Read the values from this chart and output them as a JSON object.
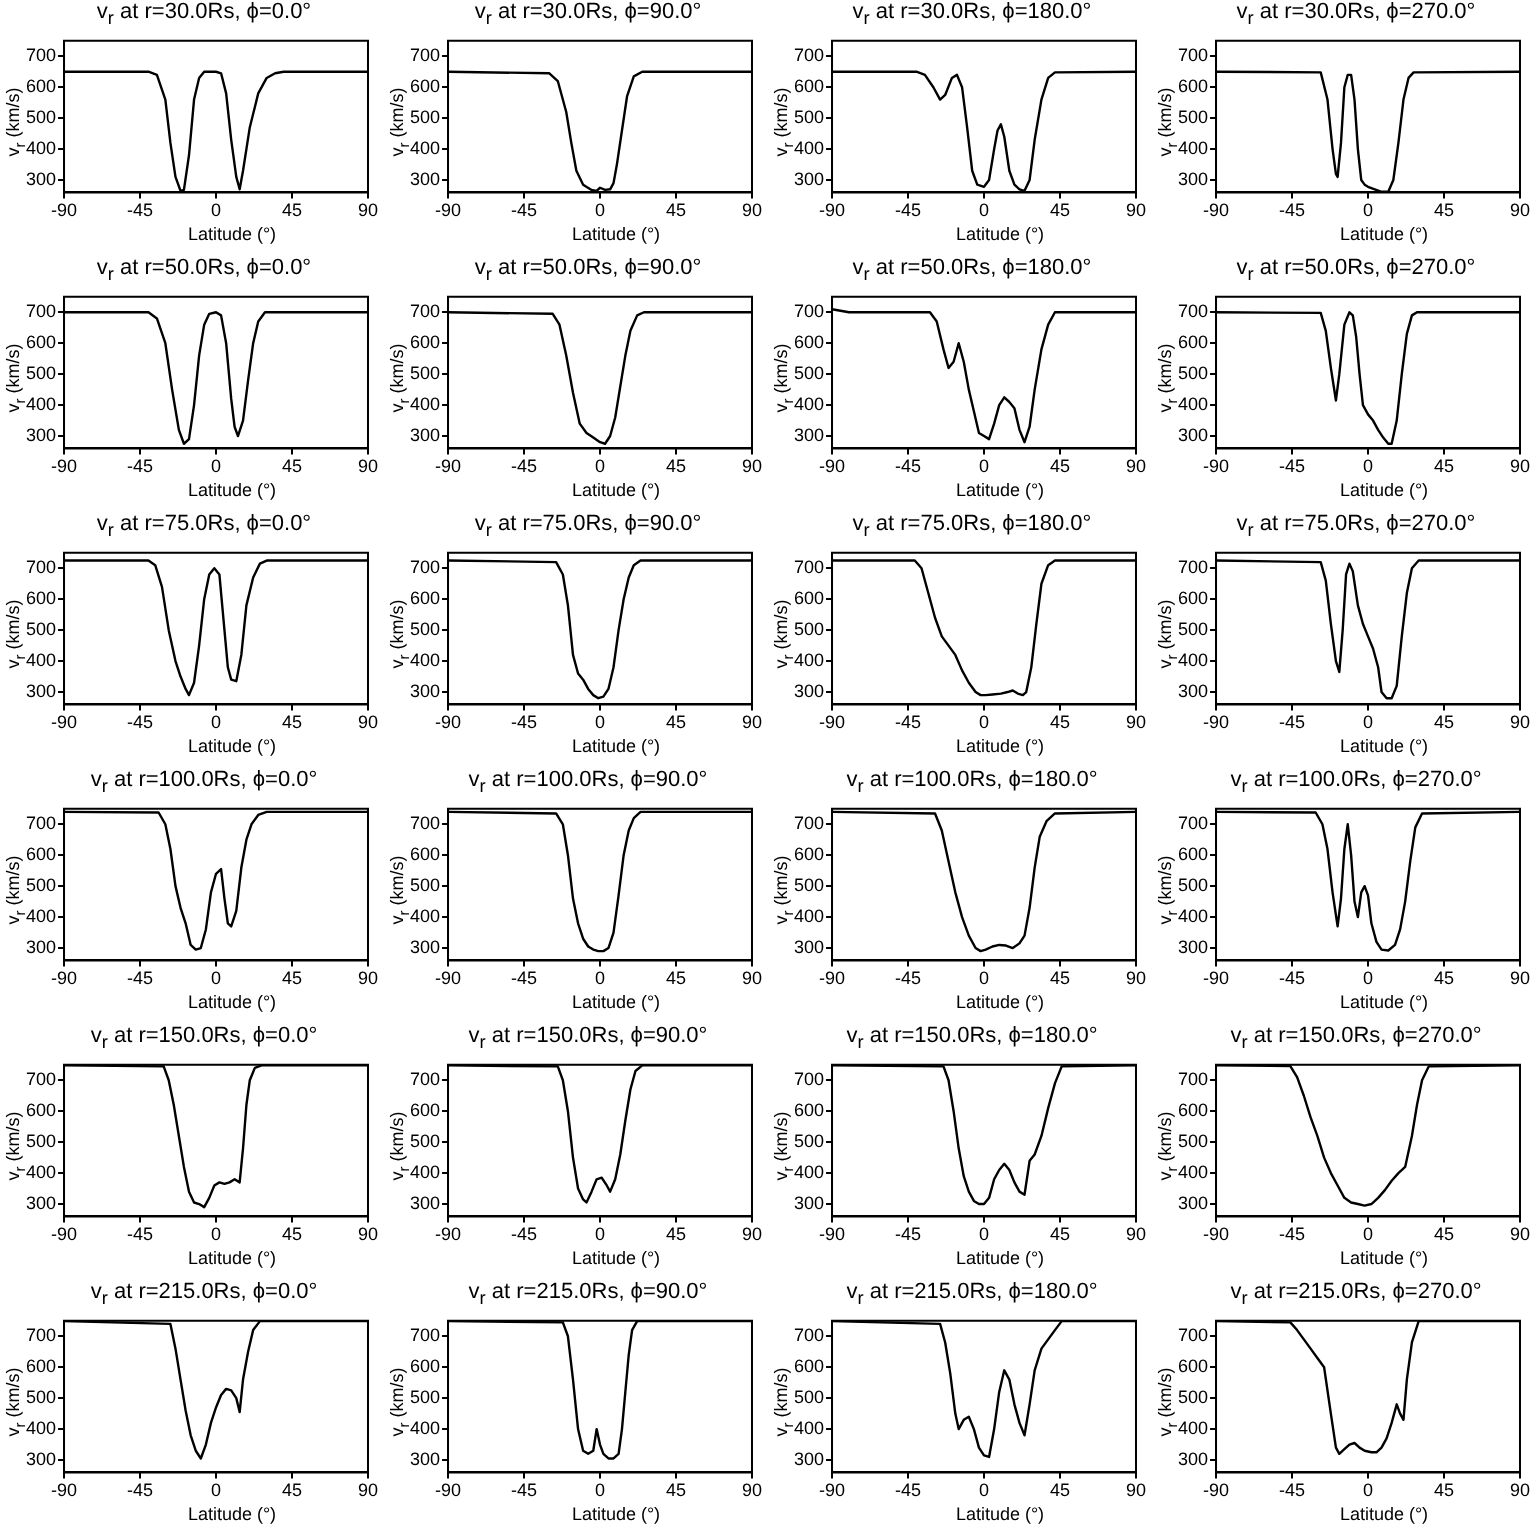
{
  "chart_data": [
    {
      "type": "line",
      "title": "v$_{r}$ at r=30.0Rs, ϕ=0.0°",
      "xlabel": "Latitude (°)",
      "ylabel": "v$_{r}$ (km/s)",
      "color": "#000000",
      "xlim": [
        -90,
        90
      ],
      "xticks": [
        -90,
        -45,
        0,
        45,
        90
      ],
      "ylim": [
        260,
        750
      ],
      "yticks": [
        300,
        400,
        500,
        600,
        700
      ],
      "x": [
        -90,
        -40,
        -35,
        -30,
        -27,
        -24,
        -21,
        -19,
        -16,
        -13,
        -10,
        -7,
        0,
        3,
        6,
        9,
        12,
        14,
        16,
        20,
        25,
        30,
        35,
        40,
        90
      ],
      "values": [
        650,
        650,
        640,
        560,
        420,
        310,
        265,
        268,
        380,
        560,
        630,
        650,
        650,
        645,
        580,
        430,
        310,
        270,
        330,
        470,
        580,
        630,
        645,
        650,
        650
      ]
    },
    {
      "type": "line",
      "title": "v$_{r}$ at r=30.0Rs, ϕ=90.0°",
      "xlabel": "Latitude (°)",
      "ylabel": "v$_{r}$ (km/s)",
      "color": "#000000",
      "xlim": [
        -90,
        90
      ],
      "xticks": [
        -90,
        -45,
        0,
        45,
        90
      ],
      "ylim": [
        260,
        750
      ],
      "yticks": [
        300,
        400,
        500,
        600,
        700
      ],
      "x": [
        -90,
        -30,
        -25,
        -20,
        -17,
        -14,
        -10,
        -5,
        -2,
        0,
        3,
        6,
        8,
        10,
        13,
        16,
        20,
        25,
        90
      ],
      "values": [
        650,
        645,
        620,
        520,
        420,
        330,
        285,
        268,
        265,
        275,
        268,
        270,
        290,
        350,
        460,
        570,
        635,
        650,
        650
      ]
    },
    {
      "type": "line",
      "title": "v$_{r}$ at r=30.0Rs, ϕ=180.0°",
      "xlabel": "Latitude (°)",
      "ylabel": "v$_{r}$ (km/s)",
      "color": "#000000",
      "xlim": [
        -90,
        90
      ],
      "xticks": [
        -90,
        -45,
        0,
        45,
        90
      ],
      "ylim": [
        260,
        750
      ],
      "yticks": [
        300,
        400,
        500,
        600,
        700
      ],
      "x": [
        -90,
        -40,
        -35,
        -30,
        -26,
        -23,
        -19,
        -16,
        -13,
        -10,
        -7,
        -4,
        0,
        3,
        6,
        8,
        10,
        12,
        15,
        18,
        21,
        24,
        27,
        30,
        34,
        38,
        42,
        90
      ],
      "values": [
        650,
        650,
        640,
        600,
        560,
        575,
        630,
        640,
        600,
        470,
        330,
        285,
        278,
        300,
        400,
        460,
        480,
        440,
        330,
        285,
        270,
        265,
        300,
        430,
        560,
        630,
        648,
        650
      ]
    },
    {
      "type": "line",
      "title": "v$_{r}$ at r=30.0Rs, ϕ=270.0°",
      "xlabel": "Latitude (°)",
      "ylabel": "v$_{r}$ (km/s)",
      "color": "#000000",
      "xlim": [
        -90,
        90
      ],
      "xticks": [
        -90,
        -45,
        0,
        45,
        90
      ],
      "ylim": [
        260,
        750
      ],
      "yticks": [
        300,
        400,
        500,
        600,
        700
      ],
      "x": [
        -90,
        -28,
        -24,
        -21,
        -19,
        -18,
        -16,
        -14,
        -12,
        -10,
        -8,
        -6,
        -4,
        -2,
        0,
        4,
        8,
        12,
        15,
        18,
        21,
        24,
        27,
        90
      ],
      "values": [
        650,
        648,
        560,
        400,
        320,
        310,
        420,
        600,
        640,
        640,
        560,
        400,
        300,
        285,
        278,
        270,
        262,
        262,
        300,
        420,
        560,
        630,
        648,
        650
      ]
    },
    {
      "type": "line",
      "title": "v$_{r}$ at r=50.0Rs, ϕ=0.0°",
      "xlabel": "Latitude (°)",
      "ylabel": "v$_{r}$ (km/s)",
      "color": "#000000",
      "xlim": [
        -90,
        90
      ],
      "xticks": [
        -90,
        -45,
        0,
        45,
        90
      ],
      "ylim": [
        260,
        750
      ],
      "yticks": [
        300,
        400,
        500,
        600,
        700
      ],
      "x": [
        -90,
        -40,
        -35,
        -30,
        -26,
        -22,
        -19,
        -16,
        -13,
        -10,
        -7,
        -4,
        0,
        3,
        6,
        9,
        11,
        13,
        16,
        19,
        22,
        25,
        29,
        90
      ],
      "values": [
        700,
        700,
        680,
        600,
        450,
        320,
        275,
        290,
        400,
        560,
        660,
        695,
        700,
        690,
        600,
        420,
        330,
        300,
        350,
        480,
        600,
        670,
        700,
        700
      ]
    },
    {
      "type": "line",
      "title": "v$_{r}$ at r=50.0Rs, ϕ=90.0°",
      "xlabel": "Latitude (°)",
      "ylabel": "v$_{r}$ (km/s)",
      "color": "#000000",
      "xlim": [
        -90,
        90
      ],
      "xticks": [
        -90,
        -45,
        0,
        45,
        90
      ],
      "ylim": [
        260,
        750
      ],
      "yticks": [
        300,
        400,
        500,
        600,
        700
      ],
      "x": [
        -90,
        -28,
        -24,
        -20,
        -16,
        -12,
        -8,
        -4,
        0,
        3,
        6,
        9,
        12,
        15,
        18,
        22,
        26,
        90
      ],
      "values": [
        700,
        695,
        660,
        560,
        440,
        340,
        310,
        295,
        280,
        275,
        300,
        360,
        460,
        560,
        640,
        690,
        700,
        700
      ]
    },
    {
      "type": "line",
      "title": "v$_{r}$ at r=50.0Rs, ϕ=180.0°",
      "xlabel": "Latitude (°)",
      "ylabel": "v$_{r}$ (km/s)",
      "color": "#000000",
      "xlim": [
        -90,
        90
      ],
      "xticks": [
        -90,
        -45,
        0,
        45,
        90
      ],
      "ylim": [
        260,
        750
      ],
      "yticks": [
        300,
        400,
        500,
        600,
        700
      ],
      "x": [
        -90,
        -85,
        -80,
        -32,
        -28,
        -24,
        -21,
        -18,
        -15,
        -12,
        -9,
        -6,
        -3,
        0,
        3,
        6,
        9,
        12,
        15,
        18,
        21,
        24,
        27,
        30,
        34,
        38,
        42,
        90
      ],
      "values": [
        710,
        705,
        700,
        700,
        670,
        580,
        520,
        540,
        600,
        540,
        450,
        380,
        310,
        300,
        290,
        340,
        400,
        425,
        410,
        390,
        320,
        280,
        330,
        450,
        580,
        660,
        700,
        700
      ]
    },
    {
      "type": "line",
      "title": "v$_{r}$ at r=50.0Rs, ϕ=270.0°",
      "xlabel": "Latitude (°)",
      "ylabel": "v$_{r}$ (km/s)",
      "color": "#000000",
      "xlim": [
        -90,
        90
      ],
      "xticks": [
        -90,
        -45,
        0,
        45,
        90
      ],
      "ylim": [
        260,
        750
      ],
      "yticks": [
        300,
        400,
        500,
        600,
        700
      ],
      "x": [
        -90,
        -28,
        -25,
        -22,
        -19,
        -17,
        -14,
        -11,
        -9,
        -7,
        -5,
        -3,
        0,
        3,
        6,
        9,
        12,
        14,
        17,
        20,
        23,
        26,
        29,
        90
      ],
      "values": [
        700,
        698,
        640,
        520,
        415,
        500,
        660,
        700,
        690,
        620,
        500,
        400,
        370,
        350,
        320,
        295,
        275,
        275,
        350,
        500,
        630,
        690,
        700,
        700
      ]
    },
    {
      "type": "line",
      "title": "v$_{r}$ at r=75.0Rs, ϕ=0.0°",
      "xlabel": "Latitude (°)",
      "ylabel": "v$_{r}$ (km/s)",
      "color": "#000000",
      "xlim": [
        -90,
        90
      ],
      "xticks": [
        -90,
        -45,
        0,
        45,
        90
      ],
      "ylim": [
        260,
        750
      ],
      "yticks": [
        300,
        400,
        500,
        600,
        700
      ],
      "x": [
        -90,
        -40,
        -36,
        -32,
        -28,
        -24,
        -21,
        -18,
        -16,
        -13,
        -10,
        -7,
        -4,
        -1,
        2,
        5,
        7,
        9,
        12,
        15,
        18,
        22,
        26,
        30,
        90
      ],
      "values": [
        725,
        725,
        710,
        640,
        500,
        400,
        350,
        310,
        290,
        330,
        450,
        600,
        680,
        700,
        680,
        500,
        380,
        340,
        335,
        420,
        580,
        670,
        715,
        725,
        725
      ]
    },
    {
      "type": "line",
      "title": "v$_{r}$ at r=75.0Rs, ϕ=90.0°",
      "xlabel": "Latitude (°)",
      "ylabel": "v$_{r}$ (km/s)",
      "color": "#000000",
      "xlim": [
        -90,
        90
      ],
      "xticks": [
        -90,
        -45,
        0,
        45,
        90
      ],
      "ylim": [
        260,
        750
      ],
      "yticks": [
        300,
        400,
        500,
        600,
        700
      ],
      "x": [
        -90,
        -26,
        -22,
        -19,
        -16,
        -13,
        -10,
        -7,
        -4,
        -1,
        2,
        5,
        8,
        11,
        14,
        17,
        20,
        24,
        90
      ],
      "values": [
        725,
        720,
        680,
        580,
        420,
        360,
        340,
        310,
        290,
        280,
        285,
        310,
        380,
        500,
        600,
        670,
        710,
        725,
        725
      ]
    },
    {
      "type": "line",
      "title": "v$_{r}$ at r=75.0Rs, ϕ=180.0°",
      "xlabel": "Latitude (°)",
      "ylabel": "v$_{r}$ (km/s)",
      "color": "#000000",
      "xlim": [
        -90,
        90
      ],
      "xticks": [
        -90,
        -45,
        0,
        45,
        90
      ],
      "ylim": [
        260,
        750
      ],
      "yticks": [
        300,
        400,
        500,
        600,
        700
      ],
      "x": [
        -90,
        -41,
        -37,
        -33,
        -29,
        -25,
        -21,
        -17,
        -13,
        -9,
        -5,
        -2,
        1,
        5,
        10,
        14,
        17,
        20,
        23,
        25,
        28,
        31,
        34,
        38,
        42,
        90
      ],
      "values": [
        725,
        725,
        700,
        620,
        540,
        480,
        450,
        420,
        370,
        330,
        300,
        290,
        290,
        292,
        295,
        300,
        305,
        295,
        290,
        300,
        380,
        520,
        650,
        710,
        725,
        725
      ]
    },
    {
      "type": "line",
      "title": "v$_{r}$ at r=75.0Rs, ϕ=270.0°",
      "xlabel": "Latitude (°)",
      "ylabel": "v$_{r}$ (km/s)",
      "color": "#000000",
      "xlim": [
        -90,
        90
      ],
      "xticks": [
        -90,
        -45,
        0,
        45,
        90
      ],
      "ylim": [
        260,
        750
      ],
      "yticks": [
        300,
        400,
        500,
        600,
        700
      ],
      "x": [
        -90,
        -28,
        -25,
        -22,
        -19,
        -17,
        -15,
        -13,
        -11,
        -9,
        -6,
        -3,
        0,
        3,
        6,
        8,
        11,
        14,
        17,
        20,
        23,
        26,
        30,
        90
      ],
      "values": [
        725,
        720,
        660,
        520,
        400,
        365,
        500,
        680,
        715,
        690,
        580,
        520,
        480,
        440,
        380,
        300,
        280,
        280,
        320,
        480,
        620,
        700,
        725,
        725
      ]
    },
    {
      "type": "line",
      "title": "v$_{r}$ at r=100.0Rs, ϕ=0.0°",
      "xlabel": "Latitude (°)",
      "ylabel": "v$_{r}$ (km/s)",
      "color": "#000000",
      "xlim": [
        -90,
        90
      ],
      "xticks": [
        -90,
        -45,
        0,
        45,
        90
      ],
      "ylim": [
        260,
        750
      ],
      "yticks": [
        300,
        400,
        500,
        600,
        700
      ],
      "x": [
        -90,
        -34,
        -30,
        -27,
        -24,
        -21,
        -18,
        -15,
        -12,
        -9,
        -6,
        -3,
        0,
        3,
        5,
        7,
        9,
        12,
        15,
        18,
        21,
        25,
        30,
        90
      ],
      "values": [
        740,
        738,
        700,
        620,
        500,
        430,
        380,
        310,
        295,
        300,
        360,
        480,
        540,
        555,
        460,
        380,
        370,
        420,
        560,
        650,
        700,
        730,
        740,
        740
      ]
    },
    {
      "type": "line",
      "title": "v$_{r}$ at r=100.0Rs, ϕ=90.0°",
      "xlabel": "Latitude (°)",
      "ylabel": "v$_{r}$ (km/s)",
      "color": "#000000",
      "xlim": [
        -90,
        90
      ],
      "xticks": [
        -90,
        -45,
        0,
        45,
        90
      ],
      "ylim": [
        260,
        750
      ],
      "yticks": [
        300,
        400,
        500,
        600,
        700
      ],
      "x": [
        -90,
        -26,
        -22,
        -19,
        -16,
        -13,
        -10,
        -7,
        -4,
        -1,
        2,
        5,
        8,
        11,
        14,
        17,
        20,
        24,
        90
      ],
      "values": [
        740,
        735,
        700,
        600,
        460,
        380,
        330,
        305,
        295,
        290,
        290,
        300,
        350,
        470,
        600,
        680,
        720,
        740,
        740
      ]
    },
    {
      "type": "line",
      "title": "v$_{r}$ at r=100.0Rs, ϕ=180.0°",
      "xlabel": "Latitude (°)",
      "ylabel": "v$_{r}$ (km/s)",
      "color": "#000000",
      "xlim": [
        -90,
        90
      ],
      "xticks": [
        -90,
        -45,
        0,
        45,
        90
      ],
      "ylim": [
        260,
        750
      ],
      "yticks": [
        300,
        400,
        500,
        600,
        700
      ],
      "x": [
        -90,
        -29,
        -25,
        -21,
        -17,
        -13,
        -9,
        -5,
        -2,
        1,
        5,
        9,
        13,
        17,
        21,
        24,
        27,
        30,
        33,
        37,
        42,
        90
      ],
      "values": [
        740,
        735,
        680,
        580,
        480,
        400,
        340,
        300,
        290,
        295,
        305,
        310,
        308,
        300,
        315,
        340,
        430,
        560,
        660,
        710,
        735,
        740
      ]
    },
    {
      "type": "line",
      "title": "v$_{r}$ at r=100.0Rs, ϕ=270.0°",
      "xlabel": "Latitude (°)",
      "ylabel": "v$_{r}$ (km/s)",
      "color": "#000000",
      "xlim": [
        -90,
        90
      ],
      "xticks": [
        -90,
        -45,
        0,
        45,
        90
      ],
      "ylim": [
        260,
        750
      ],
      "yticks": [
        300,
        400,
        500,
        600,
        700
      ],
      "x": [
        -90,
        -31,
        -27,
        -24,
        -21,
        -18,
        -16,
        -14,
        -12,
        -10,
        -8,
        -6,
        -4,
        -2,
        0,
        2,
        5,
        8,
        12,
        16,
        19,
        22,
        25,
        28,
        32,
        90
      ],
      "values": [
        740,
        738,
        700,
        620,
        480,
        370,
        460,
        620,
        700,
        600,
        450,
        400,
        480,
        500,
        470,
        380,
        320,
        295,
        292,
        310,
        360,
        450,
        580,
        690,
        735,
        740
      ]
    },
    {
      "type": "line",
      "title": "v$_{r}$ at r=150.0Rs, ϕ=0.0°",
      "xlabel": "Latitude (°)",
      "ylabel": "v$_{r}$ (km/s)",
      "color": "#000000",
      "xlim": [
        -90,
        90
      ],
      "xticks": [
        -90,
        -45,
        0,
        45,
        90
      ],
      "ylim": [
        260,
        750
      ],
      "yticks": [
        300,
        400,
        500,
        600,
        700
      ],
      "x": [
        -90,
        -31,
        -28,
        -25,
        -22,
        -19,
        -16,
        -13,
        -10,
        -7,
        -4,
        -1,
        2,
        5,
        8,
        11,
        14,
        16,
        18,
        20,
        23,
        27,
        90
      ],
      "values": [
        748,
        745,
        700,
        620,
        520,
        420,
        340,
        305,
        300,
        290,
        320,
        360,
        370,
        365,
        370,
        380,
        370,
        480,
        620,
        700,
        740,
        748,
        748
      ]
    },
    {
      "type": "line",
      "title": "v$_{r}$ at r=150.0Rs, ϕ=90.0°",
      "xlabel": "Latitude (°)",
      "ylabel": "v$_{r}$ (km/s)",
      "color": "#000000",
      "xlim": [
        -90,
        90
      ],
      "xticks": [
        -90,
        -45,
        0,
        45,
        90
      ],
      "ylim": [
        260,
        750
      ],
      "yticks": [
        300,
        400,
        500,
        600,
        700
      ],
      "x": [
        -90,
        -25,
        -22,
        -19,
        -16,
        -13,
        -10,
        -8,
        -5,
        -2,
        1,
        4,
        6,
        9,
        12,
        15,
        18,
        21,
        25,
        90
      ],
      "values": [
        748,
        745,
        700,
        600,
        450,
        350,
        315,
        305,
        340,
        380,
        385,
        360,
        340,
        380,
        460,
        570,
        670,
        730,
        748,
        748
      ]
    },
    {
      "type": "line",
      "title": "v$_{r}$ at r=150.0Rs, ϕ=180.0°",
      "xlabel": "Latitude (°)",
      "ylabel": "v$_{r}$ (km/s)",
      "color": "#000000",
      "xlim": [
        -90,
        90
      ],
      "xticks": [
        -90,
        -45,
        0,
        45,
        90
      ],
      "ylim": [
        260,
        750
      ],
      "yticks": [
        300,
        400,
        500,
        600,
        700
      ],
      "x": [
        -90,
        -24,
        -21,
        -18,
        -15,
        -12,
        -9,
        -6,
        -3,
        0,
        3,
        6,
        9,
        12,
        15,
        18,
        21,
        24,
        27,
        30,
        34,
        38,
        42,
        46,
        90
      ],
      "values": [
        748,
        745,
        700,
        600,
        480,
        390,
        340,
        310,
        300,
        300,
        320,
        380,
        410,
        430,
        410,
        370,
        340,
        330,
        440,
        460,
        520,
        610,
        690,
        745,
        748
      ]
    },
    {
      "type": "line",
      "title": "v$_{r}$ at r=150.0Rs, ϕ=270.0°",
      "xlabel": "Latitude (°)",
      "ylabel": "v$_{r}$ (km/s)",
      "color": "#000000",
      "xlim": [
        -90,
        90
      ],
      "xticks": [
        -90,
        -45,
        0,
        45,
        90
      ],
      "ylim": [
        260,
        750
      ],
      "yticks": [
        300,
        400,
        500,
        600,
        700
      ],
      "x": [
        -90,
        -46,
        -42,
        -38,
        -34,
        -30,
        -26,
        -22,
        -18,
        -14,
        -10,
        -6,
        -2,
        2,
        6,
        10,
        14,
        18,
        22,
        26,
        29,
        32,
        36,
        90
      ],
      "values": [
        748,
        746,
        710,
        650,
        580,
        520,
        450,
        400,
        360,
        320,
        305,
        300,
        295,
        300,
        320,
        345,
        375,
        400,
        420,
        520,
        620,
        700,
        745,
        748
      ]
    },
    {
      "type": "line",
      "title": "v$_{r}$ at r=215.0Rs, ϕ=0.0°",
      "xlabel": "Latitude (°)",
      "ylabel": "v$_{r}$ (km/s)",
      "color": "#000000",
      "xlim": [
        -90,
        90
      ],
      "xticks": [
        -90,
        -45,
        0,
        45,
        90
      ],
      "ylim": [
        260,
        750
      ],
      "yticks": [
        300,
        400,
        500,
        600,
        700
      ],
      "x": [
        -90,
        -27,
        -24,
        -21,
        -18,
        -15,
        -12,
        -9,
        -6,
        -3,
        0,
        3,
        6,
        9,
        12,
        14,
        16,
        19,
        22,
        26,
        90
      ],
      "values": [
        749,
        740,
        660,
        560,
        460,
        380,
        330,
        305,
        350,
        420,
        470,
        510,
        530,
        525,
        500,
        455,
        560,
        650,
        720,
        749,
        749
      ]
    },
    {
      "type": "line",
      "title": "v$_{r}$ at r=215.0Rs, ϕ=90.0°",
      "xlabel": "Latitude (°)",
      "ylabel": "v$_{r}$ (km/s)",
      "color": "#000000",
      "xlim": [
        -90,
        90
      ],
      "xticks": [
        -90,
        -45,
        0,
        45,
        90
      ],
      "ylim": [
        260,
        750
      ],
      "yticks": [
        300,
        400,
        500,
        600,
        700
      ],
      "x": [
        -90,
        -22,
        -19,
        -16,
        -13,
        -10,
        -7,
        -4,
        -2,
        0,
        2,
        5,
        8,
        11,
        13,
        15,
        17,
        19,
        22,
        90
      ],
      "values": [
        749,
        745,
        700,
        560,
        400,
        330,
        320,
        330,
        400,
        350,
        320,
        305,
        305,
        320,
        400,
        520,
        640,
        720,
        749,
        749
      ]
    },
    {
      "type": "line",
      "title": "v$_{r}$ at r=215.0Rs, ϕ=180.0°",
      "xlabel": "Latitude (°)",
      "ylabel": "v$_{r}$ (km/s)",
      "color": "#000000",
      "xlim": [
        -90,
        90
      ],
      "xticks": [
        -90,
        -45,
        0,
        45,
        90
      ],
      "ylim": [
        260,
        750
      ],
      "yticks": [
        300,
        400,
        500,
        600,
        700
      ],
      "x": [
        -90,
        -26,
        -23,
        -20,
        -17,
        -15,
        -12,
        -9,
        -6,
        -3,
        0,
        3,
        6,
        9,
        12,
        15,
        18,
        21,
        24,
        27,
        30,
        34,
        38,
        42,
        46,
        90
      ],
      "values": [
        749,
        740,
        680,
        580,
        450,
        400,
        430,
        440,
        400,
        340,
        315,
        310,
        400,
        520,
        590,
        560,
        480,
        420,
        380,
        480,
        590,
        660,
        690,
        720,
        749,
        749
      ]
    },
    {
      "type": "line",
      "title": "v$_{r}$ at r=215.0Rs, ϕ=270.0°",
      "xlabel": "Latitude (°)",
      "ylabel": "v$_{r}$ (km/s)",
      "color": "#000000",
      "xlim": [
        -90,
        90
      ],
      "xticks": [
        -90,
        -45,
        0,
        45,
        90
      ],
      "ylim": [
        260,
        750
      ],
      "yticks": [
        300,
        400,
        500,
        600,
        700
      ],
      "x": [
        -90,
        -46,
        -42,
        -38,
        -34,
        -30,
        -26,
        -22,
        -19,
        -17,
        -14,
        -11,
        -8,
        -5,
        -2,
        2,
        5,
        8,
        11,
        14,
        17,
        19,
        21,
        23,
        26,
        30,
        90
      ],
      "values": [
        749,
        745,
        720,
        690,
        660,
        630,
        600,
        450,
        340,
        320,
        335,
        350,
        355,
        340,
        330,
        325,
        325,
        340,
        370,
        420,
        480,
        450,
        430,
        560,
        680,
        749,
        749
      ]
    }
  ]
}
